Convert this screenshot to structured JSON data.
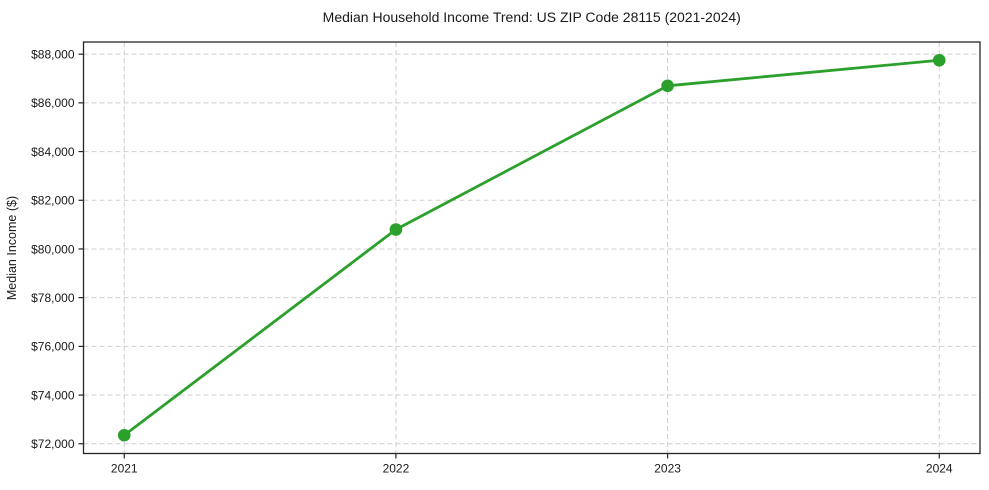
{
  "chart_data": {
    "type": "line",
    "title": "Median Household Income Trend: US ZIP Code 28115 (2021-2024)",
    "xlabel": "",
    "ylabel": "Median Income ($)",
    "x": [
      2021,
      2022,
      2023,
      2024
    ],
    "x_tick_labels": [
      "2021",
      "2022",
      "2023",
      "2024"
    ],
    "series": [
      {
        "name": "Median Household Income",
        "values": [
          72350,
          80800,
          86700,
          87750
        ]
      }
    ],
    "yticks": [
      72000,
      74000,
      76000,
      78000,
      80000,
      82000,
      84000,
      86000,
      88000
    ],
    "y_tick_labels": [
      "$72,000",
      "$74,000",
      "$76,000",
      "$78,000",
      "$80,000",
      "$82,000",
      "$84,000",
      "$86,000",
      "$88,000"
    ],
    "xlim": [
      2020.85,
      2024.15
    ],
    "ylim": [
      71600,
      88500
    ],
    "grid": true,
    "legend": "none",
    "colors": {
      "line": "#2ca02c",
      "marker": "#2ca02c",
      "grid": "#cfcfcf",
      "axis": "#262626",
      "text": "#1a1a1a",
      "background": "#ffffff"
    }
  }
}
